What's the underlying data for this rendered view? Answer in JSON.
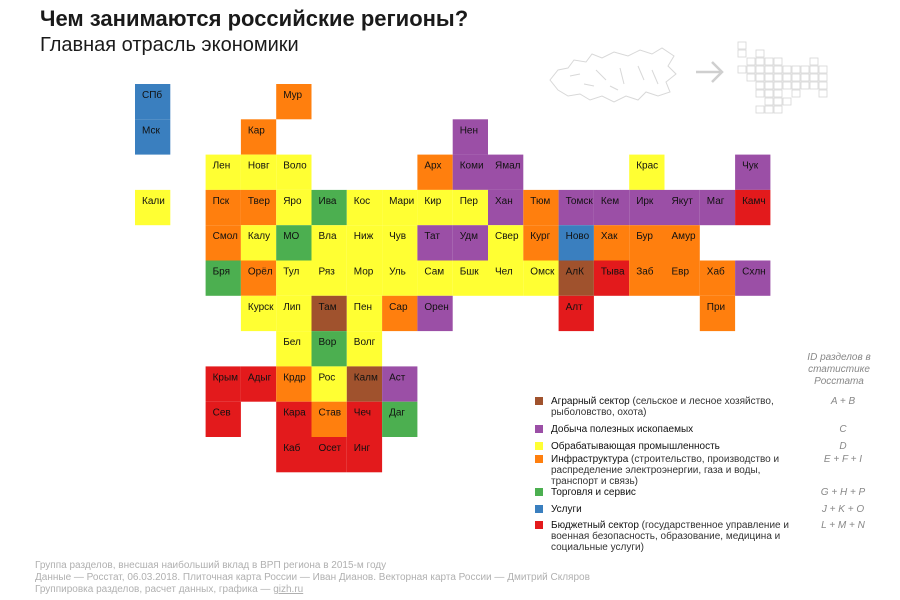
{
  "header": {
    "title": "Чем занимаются российские регионы?",
    "subtitle": "Главная отрасль экономики"
  },
  "icons": {
    "map_outline": "russia-map-outline-icon",
    "arrow": "arrow-right-icon",
    "grid": "tile-grid-icon"
  },
  "colors": {
    "agr": "#a0522d",
    "min": "#9b4fa6",
    "man": "#ffff33",
    "inf": "#ff7f0e",
    "trd": "#4caf50",
    "srv": "#3a7fbf",
    "bud": "#e31a1c"
  },
  "chart_data": {
    "type": "table",
    "title": "Чем занимаются российские регионы?",
    "subtitle": "Главная отрасль экономики",
    "categories": [
      {
        "key": "agr",
        "label": "Аграрный сектор",
        "note": "(сельское и лесное хозяйство, рыболовство, охота)",
        "ids": "A + B"
      },
      {
        "key": "min",
        "label": "Добыча полезных ископаемых",
        "note": "",
        "ids": "C"
      },
      {
        "key": "man",
        "label": "Обрабатывающая промышленность",
        "note": "",
        "ids": "D"
      },
      {
        "key": "inf",
        "label": "Инфраструктура",
        "note": "(строительство, производство и распределение электроэнергии, газа и воды, транспорт и связь)",
        "ids": "E + F + I"
      },
      {
        "key": "trd",
        "label": "Торговля и сервис",
        "note": "",
        "ids": "G + H + P"
      },
      {
        "key": "srv",
        "label": "Услуги",
        "note": "",
        "ids": "J + K + O"
      },
      {
        "key": "bud",
        "label": "Бюджетный сектор",
        "note": "(государственное управление и военная безопасность, образование, медицина и социальные услуги)",
        "ids": "L + M + N"
      }
    ],
    "ids_header": "ID разделов в статистике Росстата",
    "regions": [
      {
        "name": "СПб",
        "col": 0,
        "row": 0,
        "cat": "srv"
      },
      {
        "name": "Мур",
        "col": 4,
        "row": 0,
        "cat": "inf"
      },
      {
        "name": "Мск",
        "col": 0,
        "row": 1,
        "cat": "srv"
      },
      {
        "name": "Кар",
        "col": 3,
        "row": 1,
        "cat": "inf"
      },
      {
        "name": "Нен",
        "col": 9,
        "row": 1,
        "cat": "min"
      },
      {
        "name": "Лен",
        "col": 2,
        "row": 2,
        "cat": "man"
      },
      {
        "name": "Новг",
        "col": 3,
        "row": 2,
        "cat": "man"
      },
      {
        "name": "Воло",
        "col": 4,
        "row": 2,
        "cat": "man"
      },
      {
        "name": "Арх",
        "col": 8,
        "row": 2,
        "cat": "inf"
      },
      {
        "name": "Коми",
        "col": 9,
        "row": 2,
        "cat": "min"
      },
      {
        "name": "Ямал",
        "col": 10,
        "row": 2,
        "cat": "min"
      },
      {
        "name": "Крас",
        "col": 14,
        "row": 2,
        "cat": "man"
      },
      {
        "name": "Чук",
        "col": 17,
        "row": 2,
        "cat": "min"
      },
      {
        "name": "Кали",
        "col": 0,
        "row": 3,
        "cat": "man"
      },
      {
        "name": "Пск",
        "col": 2,
        "row": 3,
        "cat": "inf"
      },
      {
        "name": "Твер",
        "col": 3,
        "row": 3,
        "cat": "inf"
      },
      {
        "name": "Яро",
        "col": 4,
        "row": 3,
        "cat": "man"
      },
      {
        "name": "Ива",
        "col": 5,
        "row": 3,
        "cat": "trd"
      },
      {
        "name": "Кос",
        "col": 6,
        "row": 3,
        "cat": "man"
      },
      {
        "name": "Мари",
        "col": 7,
        "row": 3,
        "cat": "man"
      },
      {
        "name": "Кир",
        "col": 8,
        "row": 3,
        "cat": "man"
      },
      {
        "name": "Пер",
        "col": 9,
        "row": 3,
        "cat": "man"
      },
      {
        "name": "Хан",
        "col": 10,
        "row": 3,
        "cat": "min"
      },
      {
        "name": "Тюм",
        "col": 11,
        "row": 3,
        "cat": "inf"
      },
      {
        "name": "Томск",
        "col": 12,
        "row": 3,
        "cat": "min"
      },
      {
        "name": "Кем",
        "col": 13,
        "row": 3,
        "cat": "min"
      },
      {
        "name": "Ирк",
        "col": 14,
        "row": 3,
        "cat": "min"
      },
      {
        "name": "Якут",
        "col": 15,
        "row": 3,
        "cat": "min"
      },
      {
        "name": "Маг",
        "col": 16,
        "row": 3,
        "cat": "min"
      },
      {
        "name": "Камч",
        "col": 17,
        "row": 3,
        "cat": "bud"
      },
      {
        "name": "Смол",
        "col": 2,
        "row": 4,
        "cat": "inf"
      },
      {
        "name": "Калу",
        "col": 3,
        "row": 4,
        "cat": "man"
      },
      {
        "name": "МО",
        "col": 4,
        "row": 4,
        "cat": "trd"
      },
      {
        "name": "Вла",
        "col": 5,
        "row": 4,
        "cat": "man"
      },
      {
        "name": "Ниж",
        "col": 6,
        "row": 4,
        "cat": "man"
      },
      {
        "name": "Чув",
        "col": 7,
        "row": 4,
        "cat": "man"
      },
      {
        "name": "Тат",
        "col": 8,
        "row": 4,
        "cat": "min"
      },
      {
        "name": "Удм",
        "col": 9,
        "row": 4,
        "cat": "min"
      },
      {
        "name": "Свер",
        "col": 10,
        "row": 4,
        "cat": "man"
      },
      {
        "name": "Кург",
        "col": 11,
        "row": 4,
        "cat": "inf"
      },
      {
        "name": "Ново",
        "col": 12,
        "row": 4,
        "cat": "srv"
      },
      {
        "name": "Хак",
        "col": 13,
        "row": 4,
        "cat": "inf"
      },
      {
        "name": "Бур",
        "col": 14,
        "row": 4,
        "cat": "inf"
      },
      {
        "name": "Амур",
        "col": 15,
        "row": 4,
        "cat": "inf"
      },
      {
        "name": "Бря",
        "col": 2,
        "row": 5,
        "cat": "trd"
      },
      {
        "name": "Орёл",
        "col": 3,
        "row": 5,
        "cat": "inf"
      },
      {
        "name": "Тул",
        "col": 4,
        "row": 5,
        "cat": "man"
      },
      {
        "name": "Ряз",
        "col": 5,
        "row": 5,
        "cat": "man"
      },
      {
        "name": "Мор",
        "col": 6,
        "row": 5,
        "cat": "man"
      },
      {
        "name": "Уль",
        "col": 7,
        "row": 5,
        "cat": "man"
      },
      {
        "name": "Сам",
        "col": 8,
        "row": 5,
        "cat": "man"
      },
      {
        "name": "Бшк",
        "col": 9,
        "row": 5,
        "cat": "man"
      },
      {
        "name": "Чел",
        "col": 10,
        "row": 5,
        "cat": "man"
      },
      {
        "name": "Омск",
        "col": 11,
        "row": 5,
        "cat": "man"
      },
      {
        "name": "АлК",
        "col": 12,
        "row": 5,
        "cat": "agr"
      },
      {
        "name": "Тыва",
        "col": 13,
        "row": 5,
        "cat": "bud"
      },
      {
        "name": "Заб",
        "col": 14,
        "row": 5,
        "cat": "inf"
      },
      {
        "name": "Евр",
        "col": 15,
        "row": 5,
        "cat": "inf"
      },
      {
        "name": "Хаб",
        "col": 16,
        "row": 5,
        "cat": "inf"
      },
      {
        "name": "Схлн",
        "col": 17,
        "row": 5,
        "cat": "min"
      },
      {
        "name": "Курск",
        "col": 3,
        "row": 6,
        "cat": "man"
      },
      {
        "name": "Лип",
        "col": 4,
        "row": 6,
        "cat": "man"
      },
      {
        "name": "Там",
        "col": 5,
        "row": 6,
        "cat": "agr"
      },
      {
        "name": "Пен",
        "col": 6,
        "row": 6,
        "cat": "man"
      },
      {
        "name": "Сар",
        "col": 7,
        "row": 6,
        "cat": "inf"
      },
      {
        "name": "Орен",
        "col": 8,
        "row": 6,
        "cat": "min"
      },
      {
        "name": "Алт",
        "col": 12,
        "row": 6,
        "cat": "bud"
      },
      {
        "name": "При",
        "col": 16,
        "row": 6,
        "cat": "inf"
      },
      {
        "name": "Бел",
        "col": 4,
        "row": 7,
        "cat": "man"
      },
      {
        "name": "Вор",
        "col": 5,
        "row": 7,
        "cat": "trd"
      },
      {
        "name": "Волг",
        "col": 6,
        "row": 7,
        "cat": "man"
      },
      {
        "name": "Крым",
        "col": 2,
        "row": 8,
        "cat": "bud"
      },
      {
        "name": "Адыг",
        "col": 3,
        "row": 8,
        "cat": "bud"
      },
      {
        "name": "Крдр",
        "col": 4,
        "row": 8,
        "cat": "inf"
      },
      {
        "name": "Рос",
        "col": 5,
        "row": 8,
        "cat": "man"
      },
      {
        "name": "Калм",
        "col": 6,
        "row": 8,
        "cat": "agr"
      },
      {
        "name": "Аст",
        "col": 7,
        "row": 8,
        "cat": "min"
      },
      {
        "name": "Сев",
        "col": 2,
        "row": 9,
        "cat": "bud"
      },
      {
        "name": "Кара",
        "col": 4,
        "row": 9,
        "cat": "bud"
      },
      {
        "name": "Став",
        "col": 5,
        "row": 9,
        "cat": "inf"
      },
      {
        "name": "Чеч",
        "col": 6,
        "row": 9,
        "cat": "bud"
      },
      {
        "name": "Даг",
        "col": 7,
        "row": 9,
        "cat": "trd"
      },
      {
        "name": "Каб",
        "col": 4,
        "row": 10,
        "cat": "bud"
      },
      {
        "name": "Осет",
        "col": 5,
        "row": 10,
        "cat": "bud"
      },
      {
        "name": "Инг",
        "col": 6,
        "row": 10,
        "cat": "bud"
      }
    ]
  },
  "footer": {
    "line1": "Группа разделов, внесшая наибольший вклад в ВРП региона в 2015-м году",
    "line2": "Данные — Росстат, 06.03.2018. Плиточная карта России — Иван Дианов. Векторная карта России — Дмитрий Скляров",
    "line3_prefix": "Группировка разделов, расчет данных, графика — ",
    "link": "gizh.ru"
  }
}
